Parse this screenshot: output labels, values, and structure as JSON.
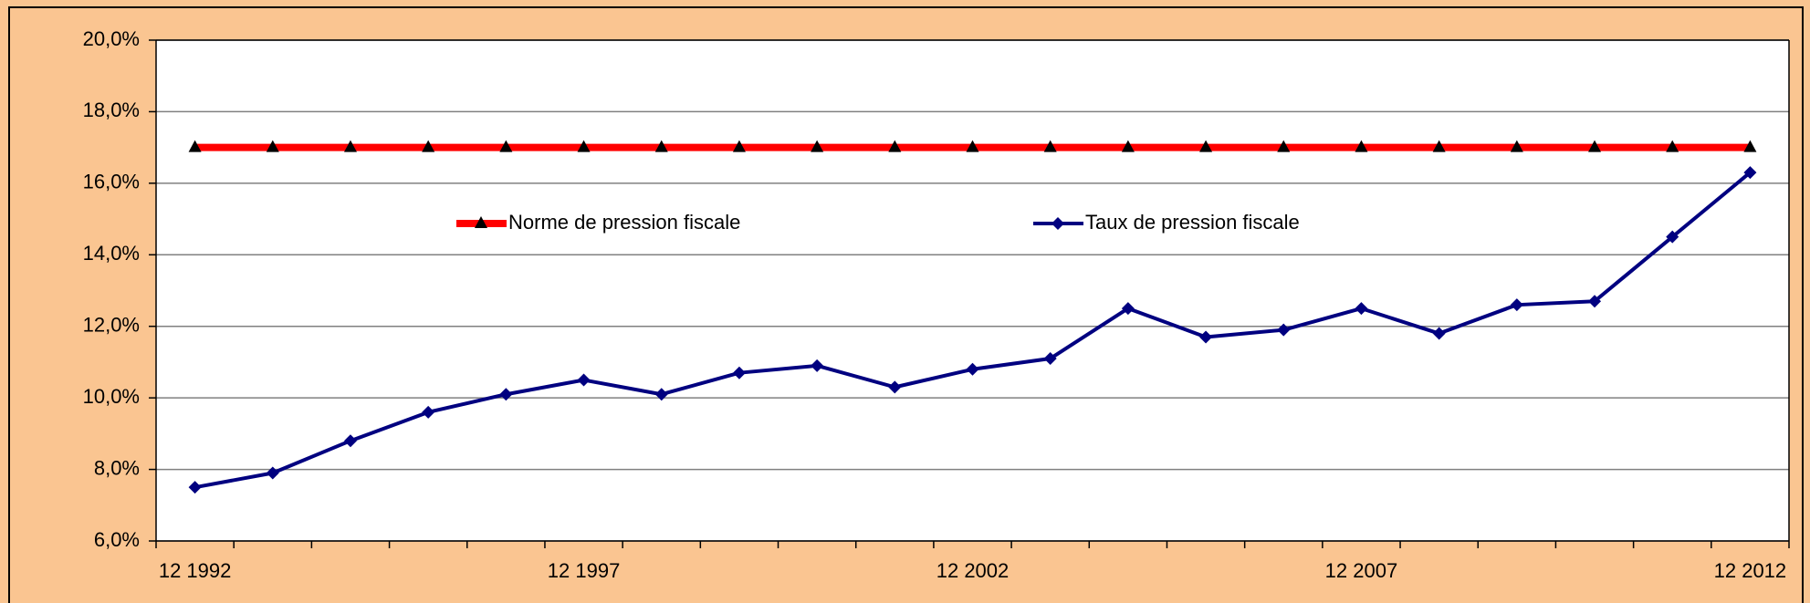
{
  "chart_data": {
    "type": "line",
    "categories": [
      "12 1992",
      null,
      null,
      null,
      null,
      "12 1997",
      null,
      null,
      null,
      null,
      "12 2002",
      null,
      null,
      null,
      null,
      "12 2007",
      null,
      null,
      null,
      null,
      "12 2012"
    ],
    "series": [
      {
        "name": "Norme de pression fiscale",
        "color": "#ff0000",
        "marker": "triangle",
        "marker_color": "#000000",
        "values": [
          17,
          17,
          17,
          17,
          17,
          17,
          17,
          17,
          17,
          17,
          17,
          17,
          17,
          17,
          17,
          17,
          17,
          17,
          17,
          17,
          17
        ]
      },
      {
        "name": "Taux de pression fiscale",
        "color": "#000080",
        "marker": "diamond",
        "marker_color": "#000080",
        "values": [
          7.5,
          7.9,
          8.8,
          9.6,
          10.1,
          10.5,
          10.1,
          10.7,
          10.9,
          10.3,
          10.8,
          11.1,
          12.5,
          11.7,
          11.9,
          12.5,
          11.8,
          12.6,
          12.7,
          14.5,
          16.3
        ]
      }
    ],
    "ylim": [
      6,
      20
    ],
    "yticks": [
      {
        "value": 6,
        "label": "6,0%"
      },
      {
        "value": 8,
        "label": "8,0%"
      },
      {
        "value": 10,
        "label": "10,0%"
      },
      {
        "value": 12,
        "label": "12,0%"
      },
      {
        "value": 14,
        "label": "14,0%"
      },
      {
        "value": 16,
        "label": "16,0%"
      },
      {
        "value": 18,
        "label": "18,0%"
      },
      {
        "value": 20,
        "label": "20,0%"
      }
    ],
    "grid": true,
    "legend": "top"
  }
}
